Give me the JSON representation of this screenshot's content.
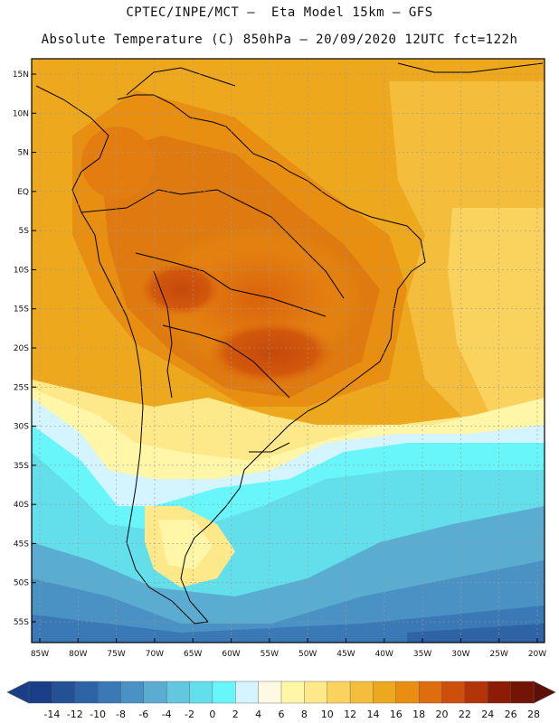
{
  "header": {
    "line1": "CPTEC/INPE/MCT –  Eta Model 15km – GFS",
    "line2": "Absolute Temperature (C) 850hPa – 20/09/2020 12UTC fct=122h"
  },
  "map": {
    "lat_labels": [
      "15N",
      "10N",
      "5N",
      "EQ",
      "5S",
      "10S",
      "15S",
      "20S",
      "25S",
      "30S",
      "35S",
      "40S",
      "45S",
      "50S",
      "55S"
    ],
    "lon_labels": [
      "85W",
      "80W",
      "75W",
      "70W",
      "65W",
      "60W",
      "55W",
      "50W",
      "45W",
      "40W",
      "35W",
      "30W",
      "25W",
      "20W"
    ],
    "grid": true
  },
  "colorbar": {
    "labels": [
      "-14",
      "-12",
      "-10",
      "-8",
      "-6",
      "-4",
      "-2",
      "0",
      "2",
      "4",
      "6",
      "8",
      "10",
      "12",
      "14",
      "16",
      "18",
      "20",
      "22",
      "24",
      "26",
      "28"
    ],
    "colors": [
      "#1a3f88",
      "#245096",
      "#2e63a6",
      "#3a78b6",
      "#4a91c4",
      "#5bacd1",
      "#63c7e0",
      "#63dfec",
      "#69f6fb",
      "#d4f4ff",
      "#fff8e2",
      "#fff6a7",
      "#fde88a",
      "#fad25e",
      "#f4bd3c",
      "#eea81d",
      "#e88f11",
      "#de6d0d",
      "#cd4f0b",
      "#b33408",
      "#8d1c06",
      "#721406"
    ]
  }
}
